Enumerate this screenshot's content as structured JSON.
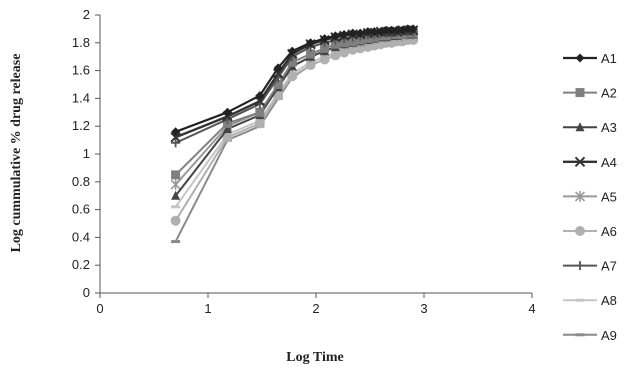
{
  "chart_data": {
    "type": "line",
    "title": "",
    "xlabel": "Log Time",
    "ylabel": "Log cummulative % drug release",
    "xlim": [
      0,
      4
    ],
    "ylim": [
      0,
      2
    ],
    "xticks": [
      "0",
      "1",
      "2",
      "3",
      "4"
    ],
    "yticks": [
      "0",
      "0.2",
      "0.4",
      "0.6",
      "0.8",
      "1",
      "1.2",
      "1.4",
      "1.6",
      "1.8",
      "2"
    ],
    "grid": false,
    "legend": "right",
    "x": [
      0.7,
      1.18,
      1.48,
      1.65,
      1.78,
      1.95,
      2.08,
      2.18,
      2.26,
      2.34,
      2.41,
      2.48,
      2.54,
      2.6,
      2.65,
      2.7,
      2.75,
      2.8,
      2.85,
      2.9
    ],
    "series": [
      {
        "name": "A1",
        "color": "#222222",
        "marker": "diamond",
        "width": 2.2,
        "values": [
          1.16,
          1.3,
          1.42,
          1.62,
          1.74,
          1.8,
          1.83,
          1.85,
          1.86,
          1.87,
          1.87,
          1.88,
          1.88,
          1.88,
          1.89,
          1.89,
          1.89,
          1.89,
          1.9,
          1.9
        ]
      },
      {
        "name": "A2",
        "color": "#7f7f7f",
        "marker": "square",
        "width": 2,
        "values": [
          0.85,
          1.22,
          1.3,
          1.5,
          1.66,
          1.72,
          1.76,
          1.79,
          1.8,
          1.81,
          1.82,
          1.83,
          1.84,
          1.85,
          1.85,
          1.86,
          1.86,
          1.86,
          1.87,
          1.87
        ]
      },
      {
        "name": "A3",
        "color": "#444444",
        "marker": "triangle",
        "width": 2,
        "values": [
          0.7,
          1.18,
          1.28,
          1.48,
          1.63,
          1.7,
          1.74,
          1.77,
          1.79,
          1.8,
          1.81,
          1.82,
          1.83,
          1.84,
          1.84,
          1.85,
          1.85,
          1.86,
          1.86,
          1.86
        ]
      },
      {
        "name": "A4",
        "color": "#333333",
        "marker": "x",
        "width": 2.4,
        "values": [
          1.12,
          1.27,
          1.38,
          1.58,
          1.72,
          1.79,
          1.82,
          1.84,
          1.85,
          1.86,
          1.86,
          1.87,
          1.87,
          1.88,
          1.88,
          1.88,
          1.88,
          1.89,
          1.89,
          1.89
        ]
      },
      {
        "name": "A5",
        "color": "#999999",
        "marker": "star",
        "width": 2,
        "values": [
          0.78,
          1.2,
          1.3,
          1.5,
          1.63,
          1.7,
          1.74,
          1.77,
          1.79,
          1.8,
          1.81,
          1.82,
          1.83,
          1.84,
          1.84,
          1.85,
          1.85,
          1.85,
          1.86,
          1.86
        ]
      },
      {
        "name": "A6",
        "color": "#b0b0b0",
        "marker": "circle",
        "width": 2,
        "values": [
          0.52,
          1.12,
          1.22,
          1.42,
          1.56,
          1.64,
          1.68,
          1.71,
          1.73,
          1.75,
          1.76,
          1.77,
          1.78,
          1.79,
          1.8,
          1.8,
          1.81,
          1.81,
          1.82,
          1.82
        ]
      },
      {
        "name": "A7",
        "color": "#555555",
        "marker": "plus",
        "width": 2,
        "values": [
          1.08,
          1.25,
          1.36,
          1.55,
          1.7,
          1.77,
          1.8,
          1.82,
          1.83,
          1.84,
          1.85,
          1.86,
          1.86,
          1.87,
          1.87,
          1.87,
          1.88,
          1.88,
          1.88,
          1.88
        ]
      },
      {
        "name": "A8",
        "color": "#c4c4c4",
        "marker": "dash",
        "width": 2,
        "values": [
          0.62,
          1.14,
          1.24,
          1.44,
          1.58,
          1.66,
          1.7,
          1.73,
          1.75,
          1.76,
          1.77,
          1.78,
          1.79,
          1.8,
          1.81,
          1.81,
          1.82,
          1.82,
          1.83,
          1.83
        ]
      },
      {
        "name": "A9",
        "color": "#8a8a8a",
        "marker": "dash",
        "width": 2,
        "values": [
          0.37,
          1.1,
          1.2,
          1.4,
          1.55,
          1.64,
          1.68,
          1.71,
          1.73,
          1.75,
          1.76,
          1.77,
          1.78,
          1.79,
          1.8,
          1.8,
          1.81,
          1.81,
          1.82,
          1.82
        ]
      }
    ]
  }
}
